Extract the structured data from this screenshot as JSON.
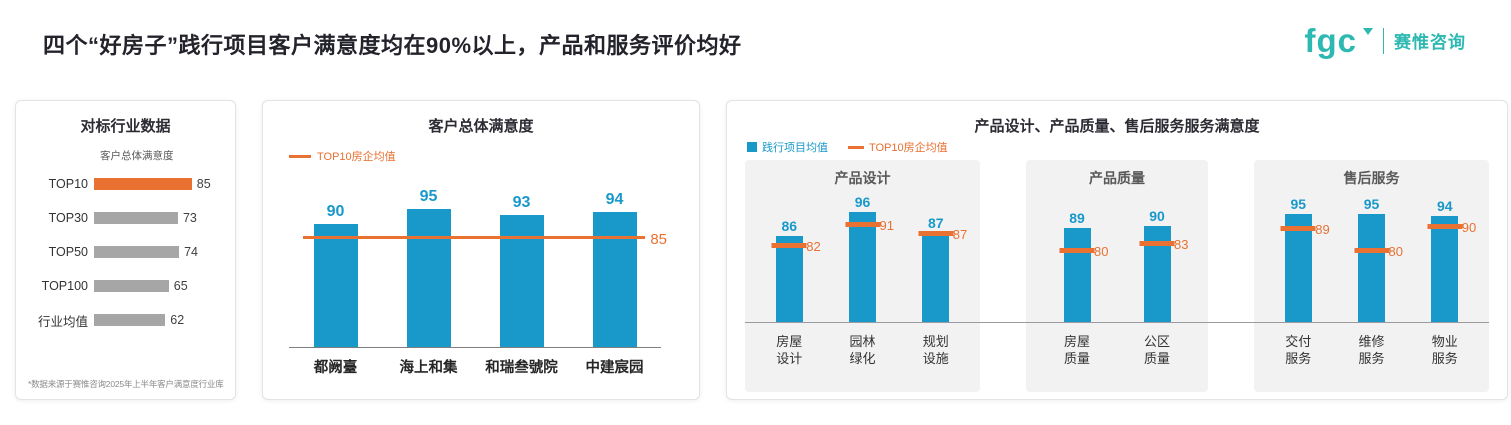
{
  "page": {
    "title": "四个“好房子”践行项目客户满意度均在90%以上，产品和服务评价均好",
    "logo_text": "fgc",
    "logo_subtext": "赛惟咨询"
  },
  "colors": {
    "teal": "#1899C9",
    "orange": "#E97132",
    "gray": "#A6A6A6",
    "logoteal": "#2EB8B2"
  },
  "panels": {
    "benchmark": {
      "title": "对标行业数据",
      "subtitle": "客户总体满意度",
      "footnote": "*数据来源于赛惟咨询2025年上半年客户满意度行业库",
      "rows": [
        {
          "label": "TOP10",
          "value": 85
        },
        {
          "label": "TOP30",
          "value": 73
        },
        {
          "label": "TOP50",
          "value": 74
        },
        {
          "label": "TOP100",
          "value": 65
        },
        {
          "label": "行业均值",
          "value": 62
        }
      ]
    },
    "overall": {
      "title": "客户总体满意度",
      "legend": "TOP10房企均值",
      "benchmark_value": 85,
      "categories": [
        "都阙臺",
        "海上和集",
        "和瑞叁號院",
        "中建宸园"
      ],
      "values": [
        90,
        95,
        93,
        94
      ]
    },
    "detail": {
      "title": "产品设计、产品质量、售后服务服务满意度",
      "legend": [
        {
          "label": "践行项目均值"
        },
        {
          "label": "TOP10房企均值"
        }
      ],
      "groups": [
        {
          "title": "产品设计",
          "bars": [
            {
              "label": "房屋\n设计",
              "value": 86,
              "benchmark": 82
            },
            {
              "label": "园林\n绿化",
              "value": 96,
              "benchmark": 91
            },
            {
              "label": "规划\n设施",
              "value": 87,
              "benchmark": 87
            }
          ]
        },
        {
          "title": "产品质量",
          "bars": [
            {
              "label": "房屋\n质量",
              "value": 89,
              "benchmark": 80
            },
            {
              "label": "公区\n质量",
              "value": 90,
              "benchmark": 83
            }
          ]
        },
        {
          "title": "售后服务",
          "bars": [
            {
              "label": "交付\n服务",
              "value": 95,
              "benchmark": 89
            },
            {
              "label": "维修\n服务",
              "value": 95,
              "benchmark": 80
            },
            {
              "label": "物业\n服务",
              "value": 94,
              "benchmark": 90
            }
          ]
        }
      ]
    }
  },
  "chart_data": [
    {
      "type": "bar",
      "orientation": "horizontal",
      "title": "对标行业数据",
      "subtitle": "客户总体满意度",
      "categories": [
        "TOP10",
        "TOP30",
        "TOP50",
        "TOP100",
        "行业均值"
      ],
      "values": [
        85,
        73,
        74,
        65,
        62
      ],
      "highlight_category": "TOP10",
      "bar_colors": [
        "#E97132",
        "#A6A6A6",
        "#A6A6A6",
        "#A6A6A6",
        "#A6A6A6"
      ],
      "footnote": "*数据来源于赛惟咨询2025年上半年客户满意度行业库"
    },
    {
      "type": "bar",
      "title": "客户总体满意度",
      "categories": [
        "都阙臺",
        "海上和集",
        "和瑞叁號院",
        "中建宸园"
      ],
      "values": [
        90,
        95,
        93,
        94
      ],
      "benchmark_line": {
        "label": "TOP10房企均值",
        "value": 85,
        "color": "#E97132"
      },
      "bar_color": "#1899C9",
      "legend_position": "top-left",
      "grid": false
    },
    {
      "type": "bar",
      "title": "产品设计、产品质量、售后服务服务满意度",
      "legend": [
        "践行项目均值",
        "TOP10房企均值"
      ],
      "groups": [
        {
          "title": "产品设计",
          "categories": [
            "房屋设计",
            "园林绿化",
            "规划设施"
          ],
          "series": [
            {
              "name": "践行项目均值",
              "values": [
                86,
                96,
                87
              ]
            },
            {
              "name": "TOP10房企均值",
              "values": [
                82,
                91,
                87
              ]
            }
          ]
        },
        {
          "title": "产品质量",
          "categories": [
            "房屋质量",
            "公区质量"
          ],
          "series": [
            {
              "name": "践行项目均值",
              "values": [
                89,
                90
              ]
            },
            {
              "name": "TOP10房企均值",
              "values": [
                80,
                83
              ]
            }
          ]
        },
        {
          "title": "售后服务",
          "categories": [
            "交付服务",
            "维修服务",
            "物业服务"
          ],
          "series": [
            {
              "name": "践行项目均值",
              "values": [
                95,
                95,
                94
              ]
            },
            {
              "name": "TOP10房企均值",
              "values": [
                89,
                80,
                90
              ]
            }
          ]
        }
      ],
      "grid": false
    }
  ]
}
